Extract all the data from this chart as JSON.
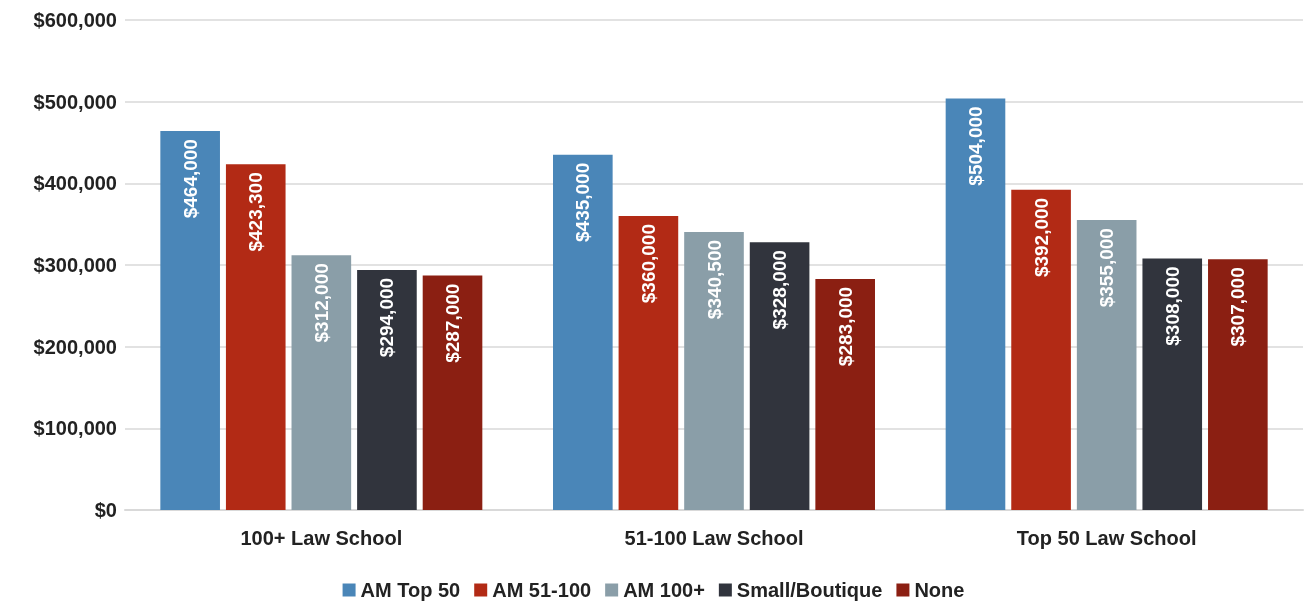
{
  "chart_data": {
    "type": "bar",
    "categories": [
      "100+ Law School",
      "51-100 Law School",
      "Top 50 Law School"
    ],
    "series": [
      {
        "name": "AM Top 50",
        "color": "#4a86b8",
        "values": [
          464000,
          435000,
          504000
        ],
        "value_labels": [
          "$464,000",
          "$435,000",
          "$504,000"
        ]
      },
      {
        "name": "AM 51-100",
        "color": "#b22a15",
        "values": [
          423300,
          360000,
          392000
        ],
        "value_labels": [
          "$423,300",
          "$360,000",
          "$392,000"
        ]
      },
      {
        "name": "AM 100+",
        "color": "#8a9ea8",
        "values": [
          312000,
          340500,
          355000
        ],
        "value_labels": [
          "$312,000",
          "$340,500",
          "$355,000"
        ]
      },
      {
        "name": "Small/Boutique",
        "color": "#31343d",
        "values": [
          294000,
          328000,
          308000
        ],
        "value_labels": [
          "$294,000",
          "$328,000",
          "$308,000"
        ]
      },
      {
        "name": "None",
        "color": "#8b1f12",
        "values": [
          287000,
          283000,
          307000
        ],
        "value_labels": [
          "$287,000",
          "$283,000",
          "$307,000"
        ]
      }
    ],
    "ylim": [
      0,
      600000
    ],
    "yticks": [
      {
        "value": 0,
        "label": "$0"
      },
      {
        "value": 100000,
        "label": "$100,000"
      },
      {
        "value": 200000,
        "label": "$200,000"
      },
      {
        "value": 300000,
        "label": "$300,000"
      },
      {
        "value": 400000,
        "label": "$400,000"
      },
      {
        "value": 500000,
        "label": "$500,000"
      },
      {
        "value": 600000,
        "label": "$600,000"
      }
    ],
    "grid": "y",
    "legend": "bottom"
  }
}
